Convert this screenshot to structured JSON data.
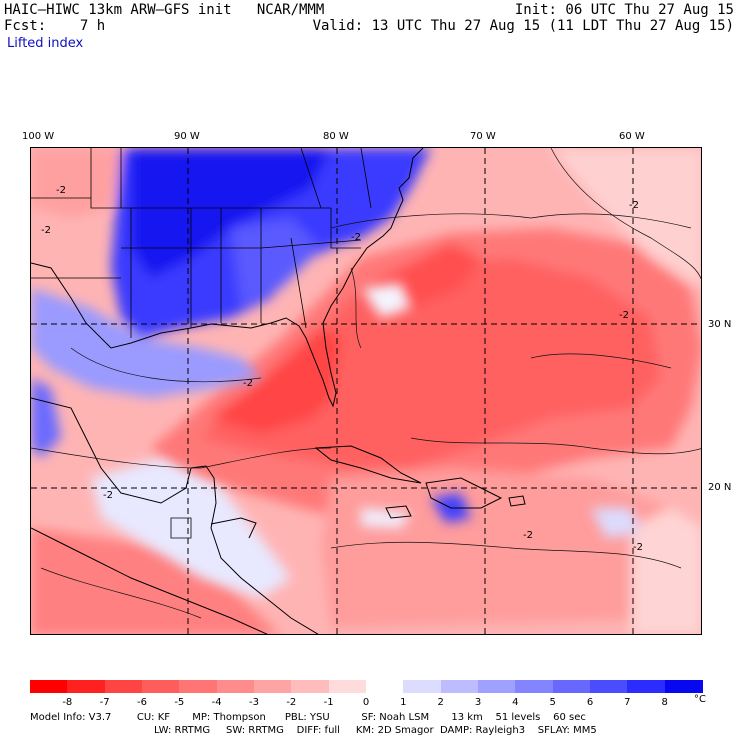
{
  "header": {
    "line1_left": "HAIC—HIWC 13km ARW—GFS init   NCAR/MMM",
    "line2_left": "Fcst:    7 h",
    "line1_right": "Init: 06 UTC Thu 27 Aug 15",
    "line2_right": "Valid: 13 UTC Thu 27 Aug 15 (11 LDT Thu 27 Aug 15)"
  },
  "field_name": "Lifted index",
  "longitude_labels": [
    "100 W",
    "90 W",
    "80 W",
    "70 W",
    "60 W"
  ],
  "latitude_labels": [
    "30 N",
    "20 N"
  ],
  "contour_labels": [
    "-2"
  ],
  "legend": {
    "ticks": [
      "-8",
      "-7",
      "-6",
      "-5",
      "-4",
      "-3",
      "-2",
      "-1",
      "0",
      "1",
      "2",
      "3",
      "4",
      "5",
      "6",
      "7",
      "8"
    ],
    "unit": "°C",
    "colors": [
      "#ff0000",
      "#ff2020",
      "#ff4444",
      "#ff5c5c",
      "#ff7474",
      "#ff8c8c",
      "#ffa4a4",
      "#ffbcbc",
      "#ffdcdc",
      "#ffffff",
      "#dcdcff",
      "#bcbcff",
      "#a0a0ff",
      "#8484ff",
      "#6868ff",
      "#4c4cff",
      "#2c2cff",
      "#0808f0"
    ]
  },
  "model_info": {
    "line1": "Model Info: V3.7        CU: KF       MP: Thompson      PBL: YSU          SF: Noah LSM       13 km    51 levels    60 sec",
    "line2": "LW: RRTMG     SW: RRTMG    DIFF: full     KM: 2D Smagor  DAMP: Rayleigh3    SFLAY: MM5"
  }
}
